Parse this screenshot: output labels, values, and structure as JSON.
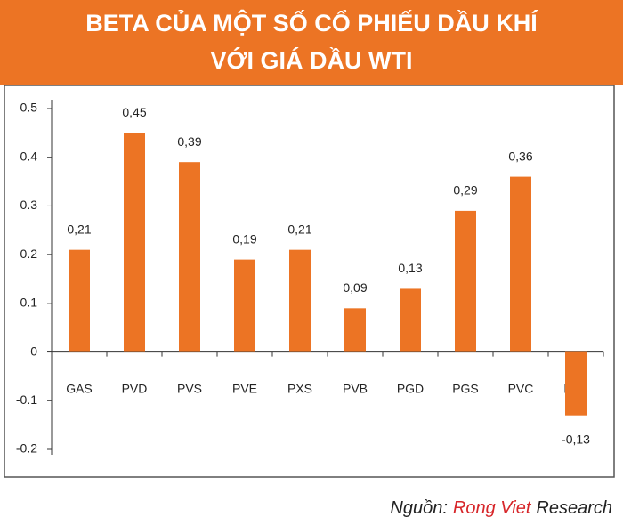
{
  "chart_data": {
    "type": "bar",
    "title": [
      "BETA CỦA MỘT SỐ CỔ PHIẾU DẦU KHÍ",
      "VỚI GIÁ DẦU WTI"
    ],
    "categories": [
      "GAS",
      "PVD",
      "PVS",
      "PVE",
      "PXS",
      "PVB",
      "PGD",
      "PGS",
      "PVC",
      "PLC"
    ],
    "values": [
      0.21,
      0.45,
      0.39,
      0.19,
      0.21,
      0.09,
      0.13,
      0.29,
      0.36,
      -0.13
    ],
    "value_labels": [
      "0,21",
      "0,45",
      "0,39",
      "0,19",
      "0,21",
      "0,09",
      "0,13",
      "0,29",
      "0,36",
      "-0,13"
    ],
    "color": "#ec7424",
    "ylim": [
      -0.2,
      0.5
    ],
    "yticks": [
      0.5,
      0.4,
      0.3,
      0.2,
      0.1,
      0,
      -0.1,
      -0.2
    ],
    "grid": false,
    "source": [
      "Nguồn:",
      "Rong Viet",
      "Research"
    ]
  }
}
